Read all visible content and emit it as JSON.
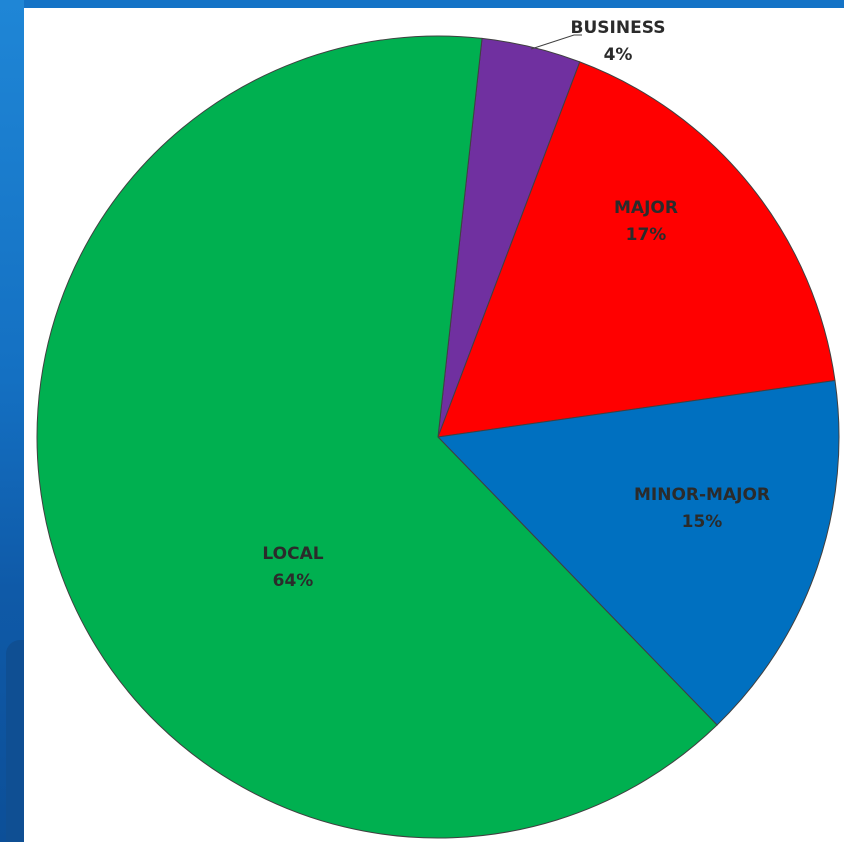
{
  "chart_data": {
    "type": "pie",
    "categories": [
      "BUSINESS",
      "MAJOR",
      "MINOR-MAJOR",
      "LOCAL"
    ],
    "values": [
      4,
      17,
      15,
      64
    ],
    "labels": [
      {
        "name": "BUSINESS",
        "pct": "4%"
      },
      {
        "name": "MAJOR",
        "pct": "17%"
      },
      {
        "name": "MINOR-MAJOR",
        "pct": "15%"
      },
      {
        "name": "LOCAL",
        "pct": "64%"
      }
    ],
    "colors": [
      "#7030a0",
      "#ff0000",
      "#0070c0",
      "#00b050"
    ],
    "title": "",
    "legend": "none"
  }
}
